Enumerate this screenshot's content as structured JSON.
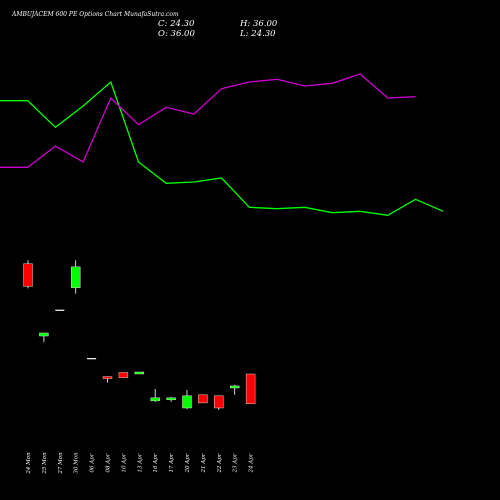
{
  "title": "AMBUJACEM 600 PE Options Chart MunafaSutra.com",
  "ohlc": {
    "close_label": "C: 24.30",
    "high_label": "H: 36.00",
    "open_label": "O: 36.00",
    "low_label": "L: 24.30"
  },
  "colors": {
    "background": "#000000",
    "up": "#00ff00",
    "down": "#ff0000",
    "line_green": "#00ff00",
    "line_magenta": "#cc00cc",
    "wick": "#ffffff",
    "text": "#ffffff"
  },
  "chart_data": {
    "type": "candlestick",
    "x_labels": [
      "24 Mon",
      "25 Mon",
      "27 Mon",
      "30 Mon",
      "06 Apr",
      "08 Apr",
      "10 Apr",
      "13 Apr",
      "16 Apr",
      "17 Apr",
      "20 Apr",
      "21 Apr",
      "22 Apr",
      "23 Apr",
      "24 Apr"
    ],
    "candles": [
      {
        "open": 79.5,
        "high": 80.9,
        "low": 69.8,
        "close": 70.6
      },
      {
        "open": 51.0,
        "high": 52.2,
        "low": 48.6,
        "close": 52.2
      },
      {
        "open": 61.2,
        "high": 61.2,
        "low": 61.2,
        "close": 61.2
      },
      {
        "open": 70.1,
        "high": 80.9,
        "low": 67.7,
        "close": 78.3
      },
      {
        "open": 42.1,
        "high": 42.1,
        "low": 42.1,
        "close": 42.1
      },
      {
        "open": 35.0,
        "high": 35.0,
        "low": 32.6,
        "close": 34.2
      },
      {
        "open": 36.6,
        "high": 36.6,
        "low": 34.6,
        "close": 34.6
      },
      {
        "open": 36.4,
        "high": 36.8,
        "low": 36.4,
        "close": 36.8
      },
      {
        "open": 25.4,
        "high": 30.1,
        "low": 25.0,
        "close": 26.6
      },
      {
        "open": 26.2,
        "high": 27.0,
        "low": 25.0,
        "close": 26.6
      },
      {
        "open": 22.6,
        "high": 29.7,
        "low": 22.2,
        "close": 27.4
      },
      {
        "open": 27.8,
        "high": 27.8,
        "low": 24.6,
        "close": 24.6
      },
      {
        "open": 27.4,
        "high": 27.4,
        "low": 21.8,
        "close": 22.6
      },
      {
        "open": 30.5,
        "high": 31.7,
        "low": 27.8,
        "close": 31.3
      },
      {
        "open": 36.0,
        "high": 36.0,
        "low": 24.3,
        "close": 24.3
      }
    ],
    "line_series": [
      {
        "color": "green",
        "values": [
          100,
          100,
          80,
          96,
          114,
          54,
          38,
          39,
          42,
          20,
          19,
          20,
          16,
          17,
          14,
          26,
          17
        ]
      },
      {
        "color": "magenta",
        "values": [
          50,
          50,
          66,
          54,
          102,
          82,
          95,
          90,
          109,
          114,
          116,
          111,
          113,
          120,
          102,
          103
        ]
      }
    ]
  }
}
